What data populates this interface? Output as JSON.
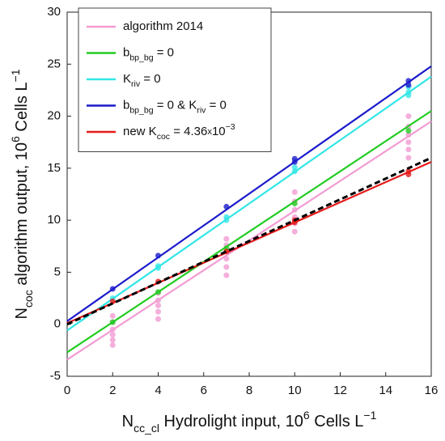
{
  "chart_data": {
    "type": "scatter",
    "xlabel": [
      {
        "text": "N"
      },
      {
        "text": "cc_cl",
        "style": "sub"
      },
      {
        "text": " Hydrolight input, 10"
      },
      {
        "text": "6",
        "style": "sup"
      },
      {
        "text": " Cells L"
      },
      {
        "text": "−1",
        "style": "sup"
      }
    ],
    "ylabel": [
      {
        "text": "N"
      },
      {
        "text": "coc",
        "style": "sub"
      },
      {
        "text": " algorithm output, 10"
      },
      {
        "text": "6",
        "style": "sup"
      },
      {
        "text": " Cells L"
      },
      {
        "text": "−1",
        "style": "sup"
      }
    ],
    "xlim": [
      0,
      16
    ],
    "xticks": [
      0,
      2,
      4,
      6,
      8,
      10,
      12,
      14,
      16
    ],
    "ylim": [
      -5,
      30
    ],
    "yticks": [
      -5,
      0,
      5,
      10,
      15,
      20,
      25,
      30
    ],
    "legend": "upper left",
    "series": [
      {
        "name": [
          {
            "text": "algorithm 2014"
          }
        ],
        "color": "#f39bd3",
        "x": [
          2,
          2,
          2,
          2,
          2,
          2,
          4,
          4,
          4,
          4,
          4,
          7,
          7,
          7,
          7,
          7,
          7,
          10,
          10,
          10,
          10,
          10,
          10,
          15,
          15,
          15,
          15,
          15,
          15
        ],
        "values": [
          0.8,
          0.2,
          -0.5,
          -1,
          -1.5,
          -2,
          3,
          2.3,
          1.8,
          1.2,
          0.5,
          8.2,
          7.6,
          7,
          6.3,
          5.5,
          4.7,
          12.7,
          11.8,
          11,
          10.3,
          9.7,
          8.9,
          20,
          19,
          18.2,
          17.5,
          16.8,
          16
        ],
        "fit_x": [
          0,
          16
        ],
        "fit": [
          -3.4,
          19.5
        ]
      },
      {
        "name": [
          {
            "text": "b"
          },
          {
            "text": "bp_bg",
            "style": "sub"
          },
          {
            "text": " = 0"
          }
        ],
        "color": "#22cc22",
        "x": [
          2,
          4,
          7,
          10,
          15
        ],
        "values": [
          0.2,
          3.1,
          7.3,
          11.6,
          18.6
        ],
        "fit_x": [
          0,
          16
        ],
        "fit": [
          -2.7,
          20.5
        ]
      },
      {
        "name": [
          {
            "text": "K"
          },
          {
            "text": "riv",
            "style": "sub"
          },
          {
            "text": " = 0"
          }
        ],
        "color": "#33e6e6",
        "x": [
          2,
          4,
          4,
          7,
          7,
          10,
          10,
          15,
          15,
          15
        ],
        "values": [
          2.5,
          5.6,
          5.4,
          10.3,
          10,
          14.7,
          15.1,
          22.3,
          22,
          22.8
        ],
        "fit_x": [
          0,
          16
        ],
        "fit": [
          -0.6,
          23.8
        ]
      },
      {
        "name": [
          {
            "text": "b"
          },
          {
            "text": "bp_bg",
            "style": "sub"
          },
          {
            "text": " = 0 & K"
          },
          {
            "text": "riv",
            "style": "sub"
          },
          {
            "text": " = 0"
          }
        ],
        "color": "#1a1acc",
        "x": [
          2,
          4,
          7,
          10,
          10,
          15,
          15
        ],
        "values": [
          3.4,
          6.6,
          11.3,
          15.9,
          15.6,
          23.4,
          23
        ],
        "fit_x": [
          0,
          16
        ],
        "fit": [
          0.3,
          24.8
        ]
      },
      {
        "name": [
          {
            "text": "new K"
          },
          {
            "text": "coc",
            "style": "sub"
          },
          {
            "text": " = 4.36"
          },
          {
            "text": "x",
            "style": "small"
          },
          {
            "text": "10"
          },
          {
            "text": "−3",
            "style": "sup"
          }
        ],
        "color": "#e61a1a",
        "x": [
          2,
          4,
          7,
          10,
          10,
          15,
          15
        ],
        "values": [
          2.2,
          4.1,
          7,
          10,
          9.8,
          14.7,
          14.4
        ],
        "fit_x": [
          0,
          16
        ],
        "fit": [
          0.1,
          15.6
        ]
      },
      {
        "color": "#000000",
        "dash": true,
        "fit_x": [
          0,
          16
        ],
        "fit": [
          0,
          16
        ]
      }
    ]
  }
}
